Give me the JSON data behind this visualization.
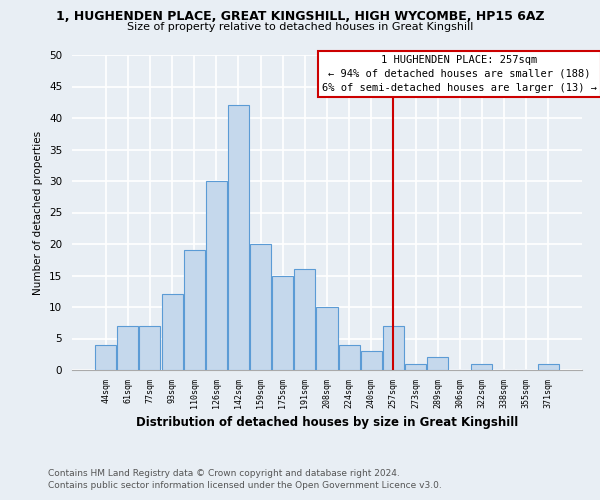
{
  "title": "1, HUGHENDEN PLACE, GREAT KINGSHILL, HIGH WYCOMBE, HP15 6AZ",
  "subtitle": "Size of property relative to detached houses in Great Kingshill",
  "xlabel": "Distribution of detached houses by size in Great Kingshill",
  "ylabel": "Number of detached properties",
  "bar_labels": [
    "44sqm",
    "61sqm",
    "77sqm",
    "93sqm",
    "110sqm",
    "126sqm",
    "142sqm",
    "159sqm",
    "175sqm",
    "191sqm",
    "208sqm",
    "224sqm",
    "240sqm",
    "257sqm",
    "273sqm",
    "289sqm",
    "306sqm",
    "322sqm",
    "338sqm",
    "355sqm",
    "371sqm"
  ],
  "bar_values": [
    4,
    7,
    7,
    12,
    19,
    30,
    42,
    20,
    15,
    16,
    10,
    4,
    3,
    7,
    1,
    2,
    0,
    1,
    0,
    0,
    1
  ],
  "bar_color": "#c5d8ec",
  "bar_edge_color": "#5b9bd5",
  "property_line_index": 13,
  "ylim": [
    0,
    50
  ],
  "yticks": [
    0,
    5,
    10,
    15,
    20,
    25,
    30,
    35,
    40,
    45,
    50
  ],
  "annotation_title": "1 HUGHENDEN PLACE: 257sqm",
  "annotation_line1": "← 94% of detached houses are smaller (188)",
  "annotation_line2": "6% of semi-detached houses are larger (13) →",
  "footer_line1": "Contains HM Land Registry data © Crown copyright and database right 2024.",
  "footer_line2": "Contains public sector information licensed under the Open Government Licence v3.0.",
  "bg_color": "#e8eef4"
}
